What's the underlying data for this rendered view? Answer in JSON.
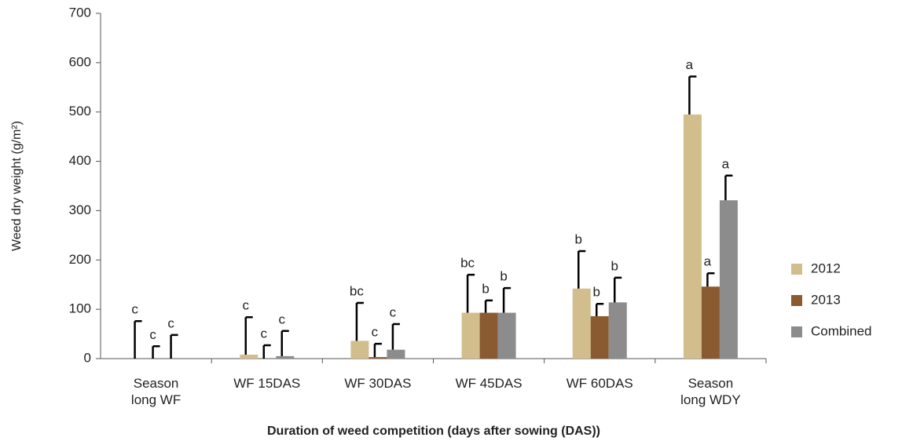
{
  "chart_data": {
    "type": "bar",
    "y_label": "Weed dry weight (g/m²)",
    "x_label": "Duration of weed competition (days after sowing (DAS))",
    "categories": [
      "Season\nlong WF",
      "WF 15DAS",
      "WF 30DAS",
      "WF 45DAS",
      "WF 60DAS",
      "Season\nlong WDY"
    ],
    "series": [
      {
        "name": "2012",
        "color": "#d2bd8c",
        "values": [
          0,
          8,
          36,
          93,
          142,
          495
        ],
        "errors": [
          76,
          76,
          77,
          77,
          76,
          77
        ],
        "letters": [
          "c",
          "c",
          "bc",
          "bc",
          "b",
          "a"
        ]
      },
      {
        "name": "2013",
        "color": "#8a5a30",
        "values": [
          0,
          0,
          3,
          93,
          86,
          146
        ],
        "errors": [
          25,
          27,
          27,
          25,
          25,
          27
        ],
        "letters": [
          "c",
          "c",
          "c",
          "b",
          "b",
          "a"
        ]
      },
      {
        "name": "Combined",
        "color": "#8c8c8c",
        "values": [
          0,
          5,
          18,
          93,
          114,
          321
        ],
        "errors": [
          48,
          51,
          52,
          50,
          50,
          50
        ],
        "letters": [
          "c",
          "c",
          "c",
          "b",
          "b",
          "a"
        ]
      }
    ],
    "ylim": [
      0,
      700
    ],
    "yticks": [
      0,
      100,
      200,
      300,
      400,
      500,
      600,
      700
    ],
    "legend": "right"
  }
}
